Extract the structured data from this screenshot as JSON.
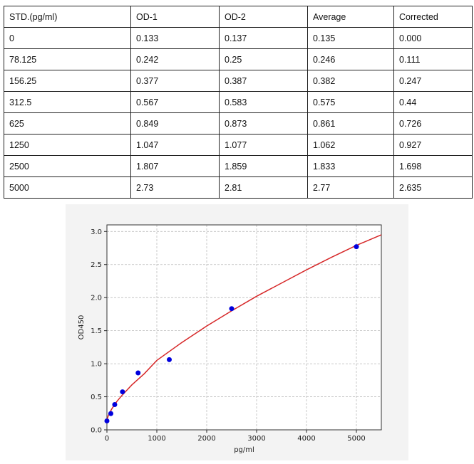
{
  "table": {
    "headers": [
      "STD.(pg/ml)",
      "OD-1",
      "OD-2",
      "Average",
      "Corrected"
    ],
    "rows": [
      [
        "0",
        "0.133",
        "0.137",
        "0.135",
        "0.000"
      ],
      [
        "78.125",
        "0.242",
        "0.25",
        "0.246",
        "0.111"
      ],
      [
        "156.25",
        "0.377",
        "0.387",
        "0.382",
        "0.247"
      ],
      [
        "312.5",
        "0.567",
        "0.583",
        "0.575",
        "0.44"
      ],
      [
        "625",
        "0.849",
        "0.873",
        "0.861",
        "0.726"
      ],
      [
        "1250",
        "1.047",
        "1.077",
        "1.062",
        "0.927"
      ],
      [
        "2500",
        "1.807",
        "1.859",
        "1.833",
        "1.698"
      ],
      [
        "5000",
        "2.73",
        "2.81",
        "2.77",
        "2.635"
      ]
    ]
  },
  "chart_data": {
    "type": "scatter",
    "xlabel": "pg/ml",
    "ylabel": "OD450",
    "xlim": [
      0,
      5500
    ],
    "ylim": [
      0,
      3.1
    ],
    "xticks": [
      "0",
      "1000",
      "2000",
      "3000",
      "4000",
      "5000"
    ],
    "yticks": [
      "0.0",
      "0.5",
      "1.0",
      "1.5",
      "2.0",
      "2.5",
      "3.0"
    ],
    "grid": true,
    "points": {
      "x": [
        0,
        78.125,
        156.25,
        312.5,
        625,
        1250,
        2500,
        5000
      ],
      "y": [
        0.135,
        0.246,
        0.382,
        0.575,
        0.861,
        1.062,
        1.833,
        2.77
      ],
      "color": "#0000dd"
    },
    "fit_curve": {
      "x": [
        0,
        25,
        50,
        100,
        200,
        300,
        500,
        750,
        1000,
        1500,
        2000,
        2500,
        3000,
        3500,
        4000,
        4500,
        5000,
        5500
      ],
      "y": [
        0.14,
        0.21,
        0.25,
        0.32,
        0.43,
        0.52,
        0.68,
        0.85,
        1.05,
        1.32,
        1.57,
        1.8,
        2.02,
        2.22,
        2.42,
        2.61,
        2.79,
        2.95
      ],
      "color": "#d62728"
    }
  }
}
